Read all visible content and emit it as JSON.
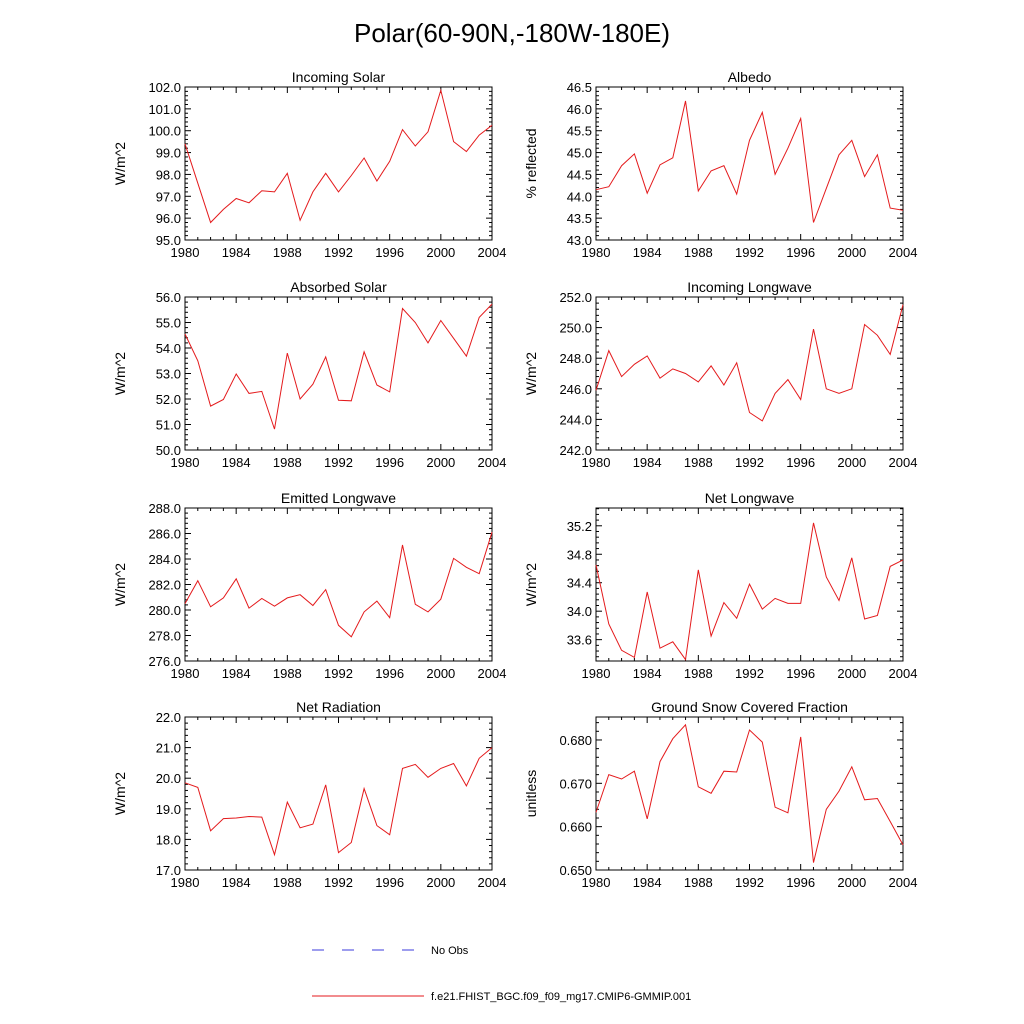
{
  "figure_title": "Polar(60-90N,-180W-180E)",
  "legend": [
    {
      "label": "No Obs",
      "color": "#3b3bdc",
      "dash": true
    },
    {
      "label": "f.e21.FHIST_BGC.f09_f09_mg17.CMIP6-GMMIP.001",
      "color": "#e41a1c",
      "dash": false
    }
  ],
  "chart_data": [
    {
      "type": "line",
      "title": "Incoming Solar",
      "ylabel": "W/m^2",
      "xlim": [
        1980,
        2004
      ],
      "xticks": [
        1980,
        1984,
        1988,
        1992,
        1996,
        2000,
        2004
      ],
      "ylim": [
        95.0,
        102.0
      ],
      "yticks": [
        95.0,
        96.0,
        97.0,
        98.0,
        99.0,
        100.0,
        101.0,
        102.0
      ],
      "tick_labels": [
        "95.0",
        "96.0",
        "97.0",
        "98.0",
        "99.0",
        "100.0",
        "101.0",
        "102.0"
      ],
      "series": [
        {
          "name": "f.e21.FHIST_BGC.f09_f09_mg17.CMIP6-GMMIP.001",
          "color": "#e41a1c",
          "x": [
            1980,
            1981,
            1982,
            1983,
            1984,
            1985,
            1986,
            1987,
            1988,
            1989,
            1990,
            1991,
            1992,
            1993,
            1994,
            1995,
            1996,
            1997,
            1998,
            1999,
            2000,
            2001,
            2002,
            2003,
            2004
          ],
          "values": [
            99.4,
            97.6,
            95.8,
            96.4,
            96.9,
            96.7,
            97.25,
            97.2,
            98.05,
            95.9,
            97.2,
            98.05,
            97.2,
            97.95,
            98.75,
            97.7,
            98.6,
            100.05,
            99.3,
            99.95,
            101.85,
            99.5,
            99.05,
            99.8,
            100.25
          ]
        }
      ]
    },
    {
      "type": "line",
      "title": "Albedo",
      "ylabel": "% reflected",
      "xlim": [
        1980,
        2004
      ],
      "xticks": [
        1980,
        1984,
        1988,
        1992,
        1996,
        2000,
        2004
      ],
      "ylim": [
        43.0,
        46.5
      ],
      "yticks": [
        43.0,
        43.5,
        44.0,
        44.5,
        45.0,
        45.5,
        46.0,
        46.5
      ],
      "tick_labels": [
        "43.0",
        "43.5",
        "44.0",
        "44.5",
        "45.0",
        "45.5",
        "46.0",
        "46.5"
      ],
      "series": [
        {
          "name": "f.e21.FHIST_BGC.f09_f09_mg17.CMIP6-GMMIP.001",
          "color": "#e41a1c",
          "x": [
            1980,
            1981,
            1982,
            1983,
            1984,
            1985,
            1986,
            1987,
            1988,
            1989,
            1990,
            1991,
            1992,
            1993,
            1994,
            1995,
            1996,
            1997,
            1998,
            1999,
            2000,
            2001,
            2002,
            2003,
            2004
          ],
          "values": [
            44.15,
            44.22,
            44.7,
            44.97,
            44.07,
            44.72,
            44.88,
            46.18,
            44.12,
            44.58,
            44.7,
            44.05,
            45.28,
            45.92,
            44.5,
            45.1,
            45.78,
            43.4,
            44.18,
            44.95,
            45.28,
            44.45,
            44.95,
            43.73,
            43.68
          ]
        }
      ]
    },
    {
      "type": "line",
      "title": "Absorbed Solar",
      "ylabel": "W/m^2",
      "xlim": [
        1980,
        2004
      ],
      "xticks": [
        1980,
        1984,
        1988,
        1992,
        1996,
        2000,
        2004
      ],
      "ylim": [
        50.0,
        56.0
      ],
      "yticks": [
        50.0,
        51.0,
        52.0,
        53.0,
        54.0,
        55.0,
        56.0
      ],
      "tick_labels": [
        "50.0",
        "51.0",
        "52.0",
        "53.0",
        "54.0",
        "55.0",
        "56.0"
      ],
      "series": [
        {
          "name": "f.e21.FHIST_BGC.f09_f09_mg17.CMIP6-GMMIP.001",
          "color": "#e41a1c",
          "x": [
            1980,
            1981,
            1982,
            1983,
            1984,
            1985,
            1986,
            1987,
            1988,
            1989,
            1990,
            1991,
            1992,
            1993,
            1994,
            1995,
            1996,
            1997,
            1998,
            1999,
            2000,
            2001,
            2002,
            2003,
            2004
          ],
          "values": [
            54.55,
            53.5,
            51.72,
            51.98,
            52.98,
            52.22,
            52.3,
            50.82,
            53.8,
            52.0,
            52.58,
            53.65,
            51.95,
            51.93,
            53.85,
            52.55,
            52.28,
            55.55,
            55.0,
            54.2,
            55.08,
            54.38,
            53.68,
            55.2,
            55.72
          ]
        }
      ]
    },
    {
      "type": "line",
      "title": "Incoming Longwave",
      "ylabel": "W/m^2",
      "xlim": [
        1980,
        2004
      ],
      "xticks": [
        1980,
        1984,
        1988,
        1992,
        1996,
        2000,
        2004
      ],
      "ylim": [
        242.0,
        252.0
      ],
      "yticks": [
        242.0,
        244.0,
        246.0,
        248.0,
        250.0,
        252.0
      ],
      "tick_labels": [
        "242.0",
        "244.0",
        "246.0",
        "248.0",
        "250.0",
        "252.0"
      ],
      "series": [
        {
          "name": "f.e21.FHIST_BGC.f09_f09_mg17.CMIP6-GMMIP.001",
          "color": "#e41a1c",
          "x": [
            1980,
            1981,
            1982,
            1983,
            1984,
            1985,
            1986,
            1987,
            1988,
            1989,
            1990,
            1991,
            1992,
            1993,
            1994,
            1995,
            1996,
            1997,
            1998,
            1999,
            2000,
            2001,
            2002,
            2003,
            2004
          ],
          "values": [
            245.9,
            248.5,
            246.8,
            247.6,
            248.15,
            246.7,
            247.3,
            247.0,
            246.45,
            247.5,
            246.25,
            247.7,
            244.45,
            243.9,
            245.7,
            246.6,
            245.3,
            249.9,
            246.0,
            245.7,
            246.0,
            250.2,
            249.5,
            248.25,
            251.5
          ]
        }
      ]
    },
    {
      "type": "line",
      "title": "Emitted Longwave",
      "ylabel": "W/m^2",
      "xlim": [
        1980,
        2004
      ],
      "xticks": [
        1980,
        1984,
        1988,
        1992,
        1996,
        2000,
        2004
      ],
      "ylim": [
        276.0,
        288.0
      ],
      "yticks": [
        276.0,
        278.0,
        280.0,
        282.0,
        284.0,
        286.0,
        288.0
      ],
      "tick_labels": [
        "276.0",
        "278.0",
        "280.0",
        "282.0",
        "284.0",
        "286.0",
        "288.0"
      ],
      "series": [
        {
          "name": "f.e21.FHIST_BGC.f09_f09_mg17.CMIP6-GMMIP.001",
          "color": "#e41a1c",
          "x": [
            1980,
            1981,
            1982,
            1983,
            1984,
            1985,
            1986,
            1987,
            1988,
            1989,
            1990,
            1991,
            1992,
            1993,
            1994,
            1995,
            1996,
            1997,
            1998,
            1999,
            2000,
            2001,
            2002,
            2003,
            2004
          ],
          "values": [
            280.5,
            282.3,
            280.25,
            280.95,
            282.45,
            280.15,
            280.9,
            280.3,
            280.95,
            281.2,
            280.35,
            281.6,
            278.8,
            277.9,
            279.85,
            280.7,
            279.4,
            285.1,
            280.45,
            279.85,
            280.85,
            284.05,
            283.35,
            282.85,
            286.1
          ]
        }
      ]
    },
    {
      "type": "line",
      "title": "Net Longwave",
      "ylabel": "W/m^2",
      "xlim": [
        1980,
        2004
      ],
      "xticks": [
        1980,
        1984,
        1988,
        1992,
        1996,
        2000,
        2004
      ],
      "ylim": [
        33.3,
        35.45
      ],
      "yticks": [
        33.6,
        34.0,
        34.4,
        34.8,
        35.2
      ],
      "tick_labels": [
        "33.6",
        "34.0",
        "34.4",
        "34.8",
        "35.2"
      ],
      "series": [
        {
          "name": "f.e21.FHIST_BGC.f09_f09_mg17.CMIP6-GMMIP.001",
          "color": "#e41a1c",
          "x": [
            1980,
            1981,
            1982,
            1983,
            1984,
            1985,
            1986,
            1987,
            1988,
            1989,
            1990,
            1991,
            1992,
            1993,
            1994,
            1995,
            1996,
            1997,
            1998,
            1999,
            2000,
            2001,
            2002,
            2003,
            2004
          ],
          "values": [
            34.65,
            33.82,
            33.45,
            33.35,
            34.27,
            33.48,
            33.57,
            33.32,
            34.58,
            33.65,
            34.12,
            33.9,
            34.38,
            34.03,
            34.18,
            34.11,
            34.11,
            35.24,
            34.48,
            34.15,
            34.75,
            33.89,
            33.94,
            34.63,
            34.72
          ]
        }
      ]
    },
    {
      "type": "line",
      "title": "Net Radiation",
      "ylabel": "W/m^2",
      "xlim": [
        1980,
        2004
      ],
      "xticks": [
        1980,
        1984,
        1988,
        1992,
        1996,
        2000,
        2004
      ],
      "ylim": [
        17.0,
        22.0
      ],
      "yticks": [
        17.0,
        18.0,
        19.0,
        20.0,
        21.0,
        22.0
      ],
      "tick_labels": [
        "17.0",
        "18.0",
        "19.0",
        "20.0",
        "21.0",
        "22.0"
      ],
      "series": [
        {
          "name": "f.e21.FHIST_BGC.f09_f09_mg17.CMIP6-GMMIP.001",
          "color": "#e41a1c",
          "x": [
            1980,
            1981,
            1982,
            1983,
            1984,
            1985,
            1986,
            1987,
            1988,
            1989,
            1990,
            1991,
            1992,
            1993,
            1994,
            1995,
            1996,
            1997,
            1998,
            1999,
            2000,
            2001,
            2002,
            2003,
            2004
          ],
          "values": [
            19.85,
            19.7,
            18.28,
            18.68,
            18.7,
            18.75,
            18.73,
            17.5,
            19.22,
            18.38,
            18.5,
            19.78,
            17.57,
            17.9,
            19.66,
            18.45,
            18.15,
            20.32,
            20.45,
            20.03,
            20.32,
            20.48,
            19.75,
            20.65,
            21.0
          ]
        }
      ]
    },
    {
      "type": "line",
      "title": "Ground Snow Covered Fraction",
      "ylabel": "unitless",
      "xlim": [
        1980,
        2004
      ],
      "xticks": [
        1980,
        1984,
        1988,
        1992,
        1996,
        2000,
        2004
      ],
      "ylim": [
        0.65,
        0.6853
      ],
      "yticks": [
        0.65,
        0.66,
        0.67,
        0.68
      ],
      "tick_labels": [
        "0.650",
        "0.660",
        "0.670",
        "0.680"
      ],
      "series": [
        {
          "name": "f.e21.FHIST_BGC.f09_f09_mg17.CMIP6-GMMIP.001",
          "color": "#e41a1c",
          "x": [
            1980,
            1981,
            1982,
            1983,
            1984,
            1985,
            1986,
            1987,
            1988,
            1989,
            1990,
            1991,
            1992,
            1993,
            1994,
            1995,
            1996,
            1997,
            1998,
            1999,
            2000,
            2001,
            2002,
            2003,
            2004
          ],
          "values": [
            0.6633,
            0.672,
            0.671,
            0.6728,
            0.6618,
            0.675,
            0.6803,
            0.6835,
            0.6692,
            0.6677,
            0.6728,
            0.6726,
            0.6823,
            0.6795,
            0.6645,
            0.6632,
            0.6807,
            0.6517,
            0.664,
            0.6682,
            0.6738,
            0.6662,
            0.6665,
            0.6612,
            0.6558
          ]
        }
      ]
    }
  ]
}
